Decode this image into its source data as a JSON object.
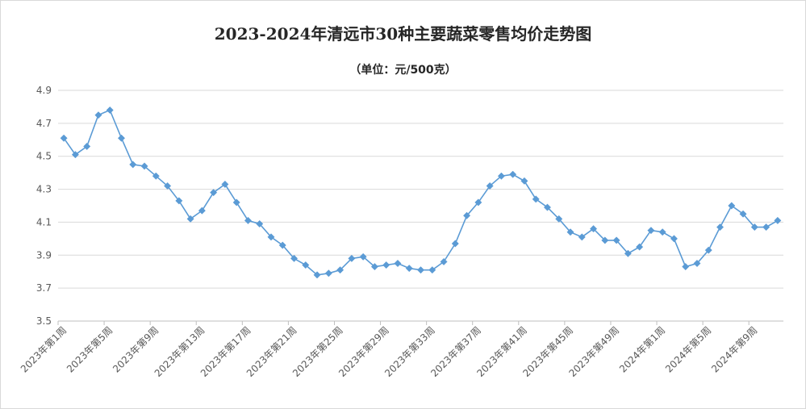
{
  "chart_data": {
    "type": "line",
    "title": "2023-2024年清远市30种主要蔬菜零售均价走势图",
    "subtitle": "（单位：元/500克）",
    "xlabel": "",
    "ylabel": "",
    "ylim": [
      3.5,
      4.9
    ],
    "yticks": [
      "4.9",
      "4.7",
      "4.5",
      "4.3",
      "4.1",
      "3.9",
      "3.7",
      "3.5"
    ],
    "ytick_values": [
      4.9,
      4.7,
      4.5,
      4.3,
      4.1,
      3.9,
      3.7,
      3.5
    ],
    "grid": true,
    "legend": "none",
    "color": "#5B9BD5",
    "categories": [
      "2023年第1周",
      "2023年第2周",
      "2023年第3周",
      "2023年第4周",
      "2023年第5周",
      "2023年第6周",
      "2023年第7周",
      "2023年第8周",
      "2023年第9周",
      "2023年第10周",
      "2023年第11周",
      "2023年第12周",
      "2023年第13周",
      "2023年第14周",
      "2023年第15周",
      "2023年第16周",
      "2023年第17周",
      "2023年第18周",
      "2023年第19周",
      "2023年第20周",
      "2023年第21周",
      "2023年第22周",
      "2023年第23周",
      "2023年第24周",
      "2023年第25周",
      "2023年第26周",
      "2023年第27周",
      "2023年第28周",
      "2023年第29周",
      "2023年第30周",
      "2023年第31周",
      "2023年第32周",
      "2023年第33周",
      "2023年第34周",
      "2023年第35周",
      "2023年第36周",
      "2023年第37周",
      "2023年第38周",
      "2023年第39周",
      "2023年第40周",
      "2023年第41周",
      "2023年第42周",
      "2023年第43周",
      "2023年第44周",
      "2023年第45周",
      "2023年第46周",
      "2023年第47周",
      "2023年第48周",
      "2023年第49周",
      "2023年第50周",
      "2023年第51周",
      "2023年第52周",
      "2024年第1周",
      "2024年第2周",
      "2024年第3周",
      "2024年第4周",
      "2024年第5周",
      "2024年第6周",
      "2024年第7周",
      "2024年第8周",
      "2024年第9周",
      "2024年第10周",
      "2024年第11周"
    ],
    "tick_labels": [
      "2023年第1周",
      "2023年第5周",
      "2023年第9周",
      "2023年第13周",
      "2023年第17周",
      "2023年第21周",
      "2023年第25周",
      "2023年第29周",
      "2023年第33周",
      "2023年第37周",
      "2023年第41周",
      "2023年第45周",
      "2023年第49周",
      "2024年第1周",
      "2024年第5周",
      "2024年第9周"
    ],
    "tick_every": 4,
    "values": [
      4.61,
      4.51,
      4.56,
      4.75,
      4.78,
      4.61,
      4.45,
      4.44,
      4.38,
      4.32,
      4.23,
      4.12,
      4.17,
      4.28,
      4.33,
      4.22,
      4.11,
      4.09,
      4.01,
      3.96,
      3.88,
      3.84,
      3.78,
      3.79,
      3.81,
      3.88,
      3.89,
      3.83,
      3.84,
      3.85,
      3.82,
      3.81,
      3.81,
      3.86,
      3.97,
      4.14,
      4.22,
      4.32,
      4.38,
      4.39,
      4.35,
      4.24,
      4.19,
      4.12,
      4.04,
      4.01,
      4.06,
      3.99,
      3.99,
      3.91,
      3.95,
      4.05,
      4.04,
      4.0,
      3.83,
      3.85,
      3.93,
      4.07,
      4.2,
      4.15,
      4.07,
      4.07,
      4.11
    ]
  }
}
